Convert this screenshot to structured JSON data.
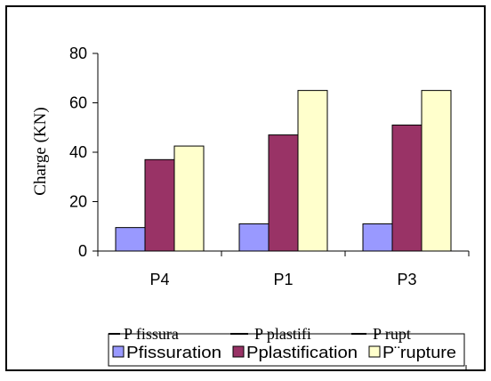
{
  "chart_data": {
    "type": "bar",
    "categories": [
      "P4",
      "P1",
      "P3"
    ],
    "series": [
      {
        "name": "Pfissuration",
        "values": [
          9.5,
          11,
          11
        ],
        "color": "#9999ff"
      },
      {
        "name": "Pplastification",
        "values": [
          37,
          47,
          51
        ],
        "color": "#993366"
      },
      {
        "name": "P¨rupture",
        "values": [
          42.5,
          65,
          65
        ],
        "color": "#ffffcc"
      }
    ],
    "ylabel": "Charge  (KN)",
    "ylim": [
      0,
      80
    ],
    "yticks": [
      0,
      20,
      40,
      60,
      80
    ],
    "grid": false,
    "legend": {
      "placement": "bottom",
      "line_labels": [
        "P fissura",
        "P plastifi",
        "P rupt"
      ]
    }
  }
}
